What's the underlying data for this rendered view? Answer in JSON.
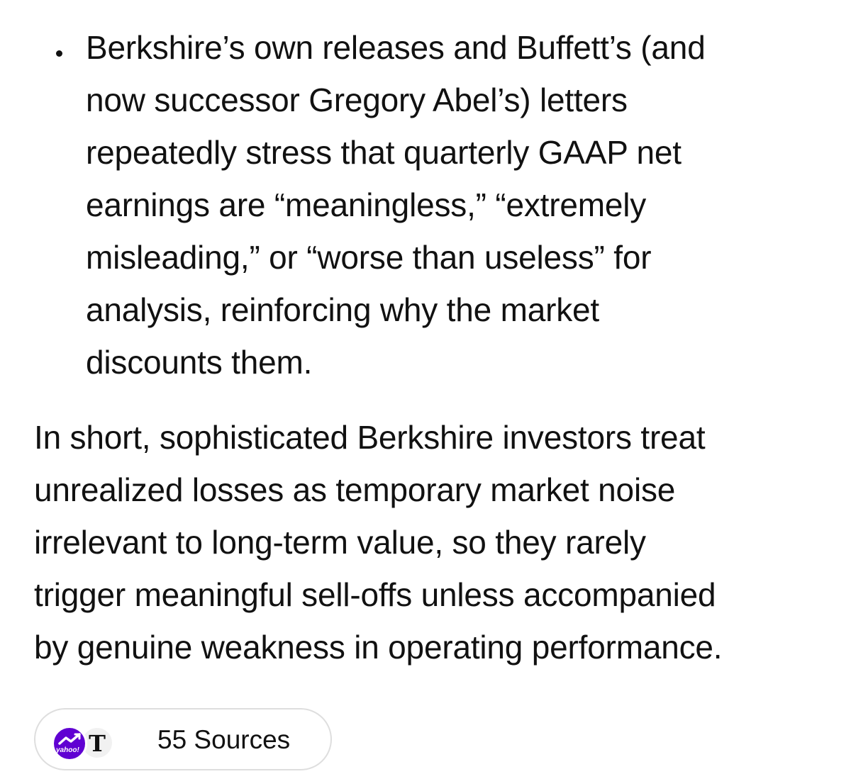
{
  "bullet": {
    "lines": [
      "Berkshire’s own releases and Buffett’s (and",
      "now successor Gregory Abel’s) letters",
      "repeatedly stress that quarterly GAAP net",
      "earnings are “meaningless,” “extremely",
      "misleading,” or “worse than useless” for",
      "analysis, reinforcing why the market",
      "discounts them."
    ]
  },
  "summary": {
    "lines": [
      "In short, sophisticated Berkshire investors treat",
      "unrealized losses as temporary market noise",
      "irrelevant to long-term value, so they rarely",
      "trigger meaningful sell-offs unless accompanied",
      "by genuine weakness in operating performance."
    ]
  },
  "sources": {
    "label": "55 Sources",
    "icons": [
      {
        "name": "yahoo-finance-icon",
        "text": "yahoo!",
        "color": "#6001d2"
      },
      {
        "name": "nyt-icon",
        "text": "T",
        "color": "#111111"
      }
    ]
  }
}
